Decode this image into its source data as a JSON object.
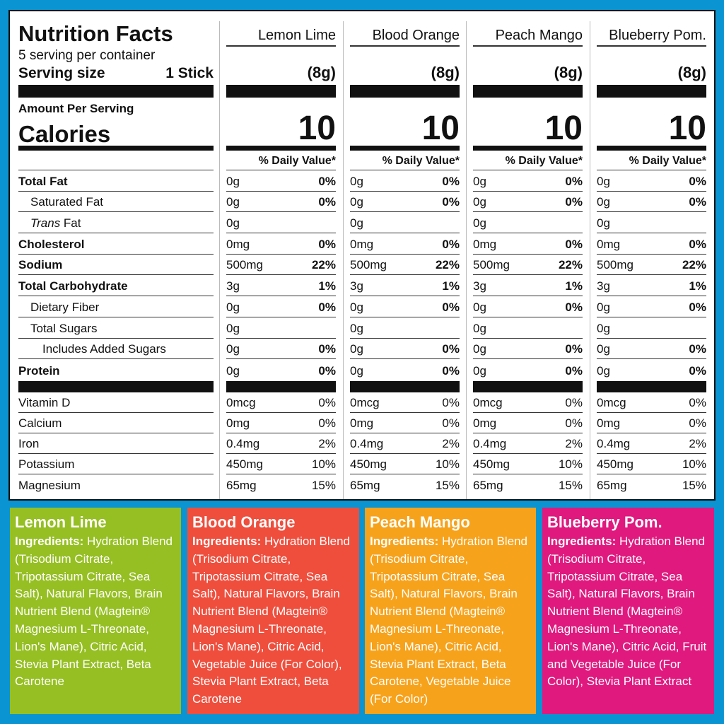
{
  "label": {
    "title": "Nutrition Facts",
    "servings": "5 serving per container",
    "serving_size_label": "Serving size",
    "serving_size_value": "1 Stick",
    "amount_per_serving": "Amount Per Serving",
    "calories_label": "Calories",
    "daily_value_header": "% Daily Value*",
    "nutrients": [
      {
        "name": "Total Fat",
        "bold": true,
        "indent": 0
      },
      {
        "name": "Saturated Fat",
        "bold": false,
        "indent": 1
      },
      {
        "name": "Trans",
        "suffix": " Fat",
        "bold": false,
        "indent": 1,
        "italic": true
      },
      {
        "name": "Cholesterol",
        "bold": true,
        "indent": 0
      },
      {
        "name": "Sodium",
        "bold": true,
        "indent": 0
      },
      {
        "name": "Total Carbohydrate",
        "bold": true,
        "indent": 0
      },
      {
        "name": "Dietary Fiber",
        "bold": false,
        "indent": 1
      },
      {
        "name": "Total Sugars",
        "bold": false,
        "indent": 1
      },
      {
        "name": "Includes Added Sugars",
        "bold": false,
        "indent": 2
      },
      {
        "name": "Protein",
        "bold": true,
        "indent": 0
      }
    ],
    "micros": [
      "Vitamin D",
      "Calcium",
      "Iron",
      "Potassium",
      "Magnesium"
    ]
  },
  "flavors": [
    {
      "name": "Lemon Lime",
      "serving": "(8g)",
      "calories": "10",
      "color": "#95bf22",
      "nutrients": [
        [
          "0g",
          "0%"
        ],
        [
          "0g",
          "0%"
        ],
        [
          "0g",
          ""
        ],
        [
          "0mg",
          "0%"
        ],
        [
          "500mg",
          "22%"
        ],
        [
          "3g",
          "1%"
        ],
        [
          "0g",
          "0%"
        ],
        [
          "0g",
          ""
        ],
        [
          "0g",
          "0%"
        ],
        [
          "0g",
          "0%"
        ]
      ],
      "micros": [
        [
          "0mcg",
          "0%"
        ],
        [
          "0mg",
          "0%"
        ],
        [
          "0.4mg",
          "2%"
        ],
        [
          "450mg",
          "10%"
        ],
        [
          "65mg",
          "15%"
        ]
      ],
      "ingredients": "Hydration Blend (Trisodium Citrate, Tripotassium Citrate, Sea Salt), Natural Flavors, Brain Nutrient Blend (Magtein® Magnesium L-Threonate, Lion's Mane), Citric Acid, Stevia Plant Extract, Beta Carotene"
    },
    {
      "name": "Blood Orange",
      "serving": "(8g)",
      "calories": "10",
      "color": "#ef4e3d",
      "nutrients": [
        [
          "0g",
          "0%"
        ],
        [
          "0g",
          "0%"
        ],
        [
          "0g",
          ""
        ],
        [
          "0mg",
          "0%"
        ],
        [
          "500mg",
          "22%"
        ],
        [
          "3g",
          "1%"
        ],
        [
          "0g",
          "0%"
        ],
        [
          "0g",
          ""
        ],
        [
          "0g",
          "0%"
        ],
        [
          "0g",
          "0%"
        ]
      ],
      "micros": [
        [
          "0mcg",
          "0%"
        ],
        [
          "0mg",
          "0%"
        ],
        [
          "0.4mg",
          "2%"
        ],
        [
          "450mg",
          "10%"
        ],
        [
          "65mg",
          "15%"
        ]
      ],
      "ingredients": "Hydration Blend (Trisodium Citrate, Tripotassium Citrate, Sea Salt), Natural Flavors, Brain Nutrient Blend (Magtein® Magnesium L-Threonate, Lion's Mane), Citric Acid, Vegetable Juice (For Color), Stevia Plant Extract, Beta Carotene"
    },
    {
      "name": "Peach Mango",
      "serving": "(8g)",
      "calories": "10",
      "color": "#f7a21b",
      "nutrients": [
        [
          "0g",
          "0%"
        ],
        [
          "0g",
          "0%"
        ],
        [
          "0g",
          ""
        ],
        [
          "0mg",
          "0%"
        ],
        [
          "500mg",
          "22%"
        ],
        [
          "3g",
          "1%"
        ],
        [
          "0g",
          "0%"
        ],
        [
          "0g",
          ""
        ],
        [
          "0g",
          "0%"
        ],
        [
          "0g",
          "0%"
        ]
      ],
      "micros": [
        [
          "0mcg",
          "0%"
        ],
        [
          "0mg",
          "0%"
        ],
        [
          "0.4mg",
          "2%"
        ],
        [
          "450mg",
          "10%"
        ],
        [
          "65mg",
          "15%"
        ]
      ],
      "ingredients": "Hydration Blend (Trisodium Citrate, Tripotassium Citrate, Sea Salt), Natural Flavors, Brain Nutrient Blend (Magtein® Magnesium L-Threonate, Lion's Mane), Citric Acid, Stevia Plant Extract, Beta Carotene, Vegetable Juice (For Color)"
    },
    {
      "name": "Blueberry Pom.",
      "serving": "(8g)",
      "calories": "10",
      "color": "#e0197f",
      "nutrients": [
        [
          "0g",
          "0%"
        ],
        [
          "0g",
          "0%"
        ],
        [
          "0g",
          ""
        ],
        [
          "0mg",
          "0%"
        ],
        [
          "500mg",
          "22%"
        ],
        [
          "3g",
          "1%"
        ],
        [
          "0g",
          "0%"
        ],
        [
          "0g",
          ""
        ],
        [
          "0g",
          "0%"
        ],
        [
          "0g",
          "0%"
        ]
      ],
      "micros": [
        [
          "0mcg",
          "0%"
        ],
        [
          "0mg",
          "0%"
        ],
        [
          "0.4mg",
          "2%"
        ],
        [
          "450mg",
          "10%"
        ],
        [
          "65mg",
          "15%"
        ]
      ],
      "ingredients": "Hydration Blend (Trisodium Citrate, Tripotassium Citrate, Sea Salt), Natural Flavors, Brain Nutrient Blend (Magtein® Magnesium L-Threonate, Lion's Mane), Citric Acid, Fruit and Vegetable Juice (For Color), Stevia Plant Extract"
    }
  ],
  "ingredients_label": "Ingredients:",
  "background_color": "#0a94d2"
}
